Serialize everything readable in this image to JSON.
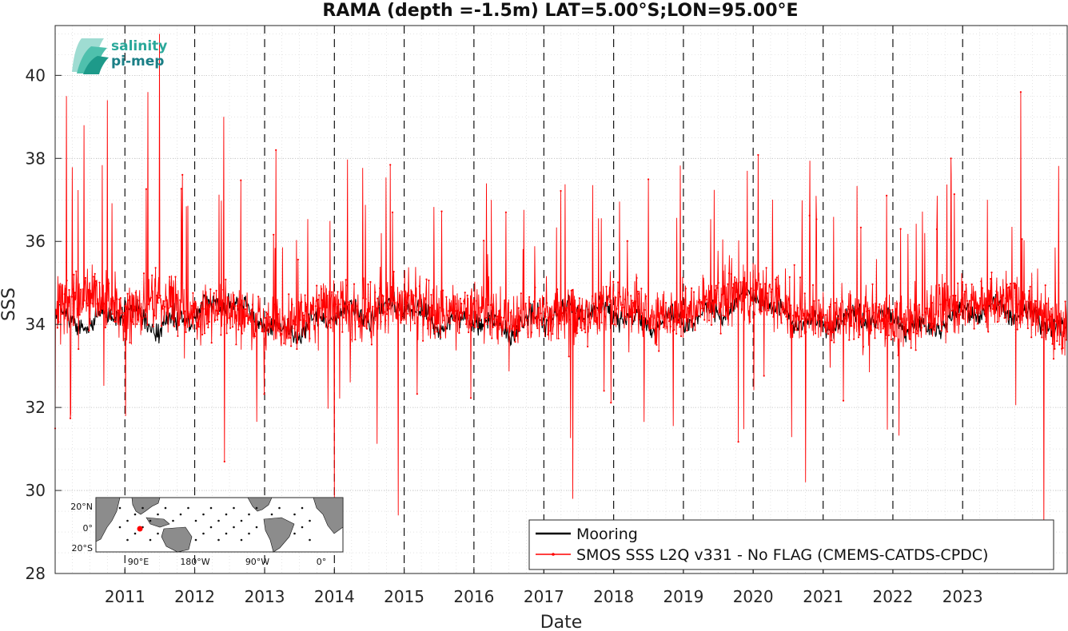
{
  "chart_data": {
    "type": "line",
    "title": "RAMA (depth =-1.5m) LAT=5.00°S;LON=95.00°E",
    "xlabel": "Date",
    "ylabel": "SSS",
    "xlim": [
      "2010-01-01",
      "2024-07-01"
    ],
    "ylim": [
      28,
      41.2
    ],
    "x_ticks": [
      "2011",
      "2012",
      "2013",
      "2014",
      "2015",
      "2016",
      "2017",
      "2018",
      "2019",
      "2020",
      "2021",
      "2022",
      "2023"
    ],
    "y_ticks": [
      "28",
      "30",
      "32",
      "34",
      "36",
      "38",
      "40"
    ],
    "grid": true,
    "legend_position": "bottom-right",
    "series": [
      {
        "name": "Mooring",
        "color": "#000000",
        "x": [
          "2010-01",
          "2010-07",
          "2011-01",
          "2011-07",
          "2012-01",
          "2012-07",
          "2013-01",
          "2013-07",
          "2014-01",
          "2014-07",
          "2015-01",
          "2015-07",
          "2016-01",
          "2016-07",
          "2017-01",
          "2017-07",
          "2018-01",
          "2018-07",
          "2019-01",
          "2019-07",
          "2020-01",
          "2020-07",
          "2021-01",
          "2021-07",
          "2022-01",
          "2022-07",
          "2023-01",
          "2023-07",
          "2024-01",
          "2024-07"
        ],
        "y": [
          34.2,
          34.0,
          34.4,
          33.9,
          34.3,
          34.6,
          34.0,
          33.8,
          34.3,
          34.2,
          34.5,
          34.0,
          34.1,
          33.9,
          34.2,
          34.4,
          34.3,
          34.0,
          34.1,
          34.3,
          34.7,
          34.2,
          34.0,
          34.2,
          34.1,
          33.9,
          34.3,
          34.4,
          34.2,
          33.8
        ]
      },
      {
        "name": "SMOS SSS L2Q v331 - No FLAG  (CMEMS-CATDS-CPDC)",
        "color": "#ff0000",
        "mean": 34.3,
        "spread": 0.9,
        "x": [
          "2010-01",
          "2010-07",
          "2011-01",
          "2011-07",
          "2012-01",
          "2012-07",
          "2013-01",
          "2013-07",
          "2014-01",
          "2014-07",
          "2015-01",
          "2015-07",
          "2016-01",
          "2016-07",
          "2017-01",
          "2017-07",
          "2018-01",
          "2018-07",
          "2019-01",
          "2019-07",
          "2020-01",
          "2020-07",
          "2021-01",
          "2021-07",
          "2022-01",
          "2022-07",
          "2023-01",
          "2023-07",
          "2024-01",
          "2024-07"
        ],
        "y": [
          34.5,
          34.7,
          34.3,
          34.6,
          34.2,
          34.4,
          34.0,
          34.1,
          34.5,
          34.3,
          34.6,
          34.2,
          34.4,
          34.0,
          34.3,
          34.2,
          34.6,
          34.1,
          34.3,
          34.5,
          34.8,
          34.4,
          34.1,
          34.2,
          34.0,
          34.3,
          34.4,
          34.6,
          34.3,
          33.9
        ],
        "extremes": [
          {
            "x": "2010-03",
            "y": 39.5
          },
          {
            "x": "2010-06",
            "y": 38.8
          },
          {
            "x": "2010-10",
            "y": 39.4
          },
          {
            "x": "2011-07",
            "y": 41.0
          },
          {
            "x": "2011-05",
            "y": 39.6
          },
          {
            "x": "2012-06",
            "y": 39.0
          },
          {
            "x": "2013-03",
            "y": 38.2
          },
          {
            "x": "2014-11",
            "y": 36.7
          },
          {
            "x": "2016-04",
            "y": 37.0
          },
          {
            "x": "2019-12",
            "y": 37.7
          },
          {
            "x": "2022-11",
            "y": 38.0
          },
          {
            "x": "2023-11",
            "y": 39.6
          },
          {
            "x": "2014-01",
            "y": 29.8
          },
          {
            "x": "2014-12",
            "y": 29.4
          },
          {
            "x": "2017-06",
            "y": 29.8
          },
          {
            "x": "2020-10",
            "y": 30.2
          },
          {
            "x": "2024-03",
            "y": 29.0
          }
        ]
      }
    ],
    "inset_map": {
      "lat_labels": [
        "20°N",
        "0°",
        "20°S"
      ],
      "lon_labels": [
        "90°E",
        "180°W",
        "90°W",
        "0°"
      ]
    },
    "logo": {
      "line1": "salinity",
      "line2": "pi-mep"
    }
  }
}
